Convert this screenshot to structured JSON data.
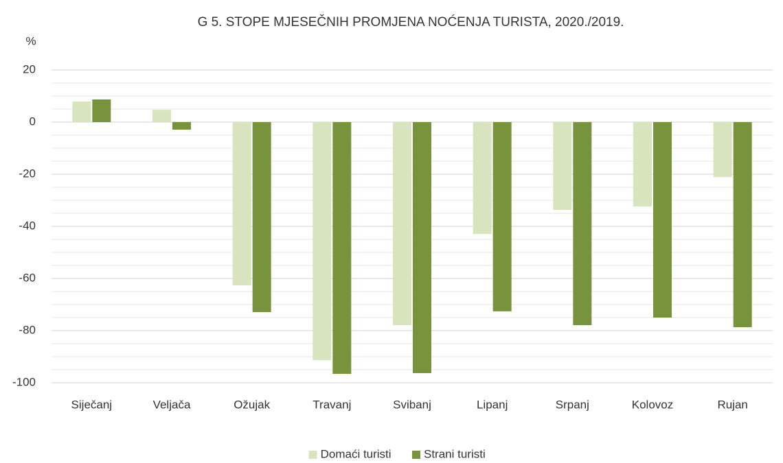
{
  "chart_data": {
    "type": "bar",
    "title": "G 5. STOPE MJESEČNIH PROMJENA NOĆENJA TURISTA, 2020./2019.",
    "y_label": "%",
    "categories": [
      "Siječanj",
      "Veljača",
      "Ožujak",
      "Travanj",
      "Svibanj",
      "Lipanj",
      "Srpanj",
      "Kolovoz",
      "Rujan"
    ],
    "series": [
      {
        "name": "Domaći turisti",
        "color": "#d7e4bd",
        "values": [
          7.9,
          4.7,
          -62.6,
          -91.3,
          -77.9,
          -42.9,
          -33.7,
          -32.4,
          -21.1
        ]
      },
      {
        "name": "Strani turisti",
        "color": "#77933c",
        "values": [
          8.7,
          -2.9,
          -72.9,
          -96.6,
          -96.3,
          -72.6,
          -77.9,
          -75.0,
          -78.7
        ]
      }
    ],
    "ylim": [
      -100,
      20
    ],
    "yticks": [
      -100,
      -80,
      -60,
      -40,
      -20,
      0,
      20
    ],
    "grid": true,
    "minor_grid_step": 5,
    "legend": "bottom"
  }
}
